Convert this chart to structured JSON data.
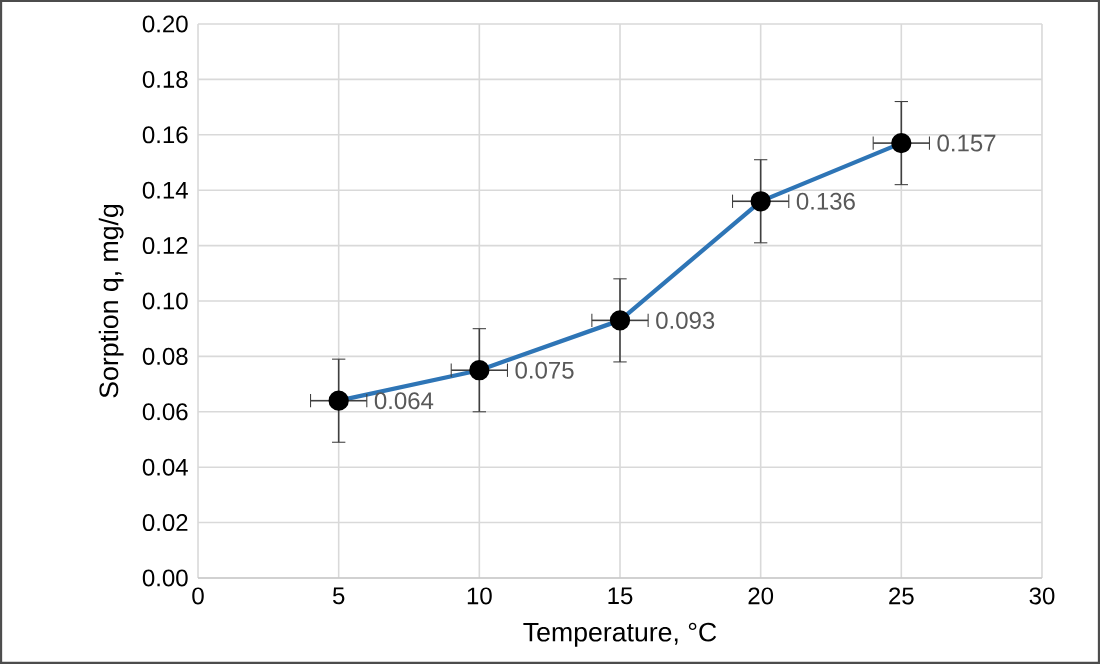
{
  "chart_data": {
    "type": "line",
    "xlabel": "Temperature, °C",
    "ylabel": "Sorption q, mg/g",
    "x": [
      5,
      10,
      15,
      20,
      25
    ],
    "values": [
      0.064,
      0.075,
      0.093,
      0.136,
      0.157
    ],
    "errors": [
      0.015,
      0.015,
      0.015,
      0.015,
      0.015
    ],
    "xerrors": [
      1,
      1,
      1,
      1,
      1
    ],
    "color": "#2e75b6",
    "marker": "circle",
    "data_labels": true,
    "grid": true,
    "xlim": [
      0,
      30
    ],
    "xticks": [
      0,
      5,
      10,
      15,
      20,
      25,
      30
    ],
    "ylim": [
      0,
      0.2
    ],
    "yticks": [
      {
        "value": 0,
        "label": "0.00"
      },
      {
        "value": 0.02,
        "label": "0.02"
      },
      {
        "value": 0.04,
        "label": "0.04"
      },
      {
        "value": 0.06,
        "label": "0.06"
      },
      {
        "value": 0.08,
        "label": "0.08"
      },
      {
        "value": 0.1,
        "label": "0.10"
      },
      {
        "value": 0.12,
        "label": "0.12"
      },
      {
        "value": 0.14,
        "label": "0.14"
      },
      {
        "value": 0.16,
        "label": "0.16"
      },
      {
        "value": 0.18,
        "label": "0.18"
      },
      {
        "value": 0.2,
        "label": "0.20"
      }
    ]
  }
}
